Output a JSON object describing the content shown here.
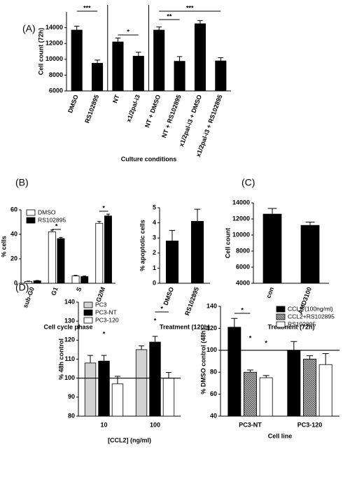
{
  "chart_data": [
    {
      "type": "bar",
      "panel": "(A)",
      "ylabel": "Cell count (72h)",
      "xlabel": "Culture conditions",
      "categories": [
        "DMSO",
        "RS102895",
        "NT",
        "x1/2pal-i3",
        "NT + DMSO",
        "NT + RS102895",
        "x1/2pal-i3 + DMSO",
        "x1/2pal-i3 + RS102895"
      ],
      "values": [
        13700,
        9500,
        12200,
        10400,
        13700,
        9750,
        14500,
        9800
      ],
      "errors": [
        500,
        400,
        500,
        500,
        400,
        600,
        400,
        400
      ],
      "color": "#000000",
      "ylim": [
        6000,
        16000
      ],
      "yticks": [
        6000,
        8000,
        10000,
        12000,
        14000
      ],
      "annotations": [
        "***",
        "*",
        "**",
        "***"
      ]
    },
    {
      "type": "bar",
      "panel": "(B)",
      "ylabel": "% cells",
      "xlabel": "Cell cycle phase",
      "categories": [
        "sub-G0",
        "G1",
        "S",
        "G2/M"
      ],
      "series": [
        {
          "name": "DMSO",
          "color": "#ffffff",
          "values": [
            1.5,
            42,
            6,
            49
          ],
          "errors": [
            0.3,
            1.5,
            0.5,
            1.5
          ]
        },
        {
          "name": "RS102895",
          "color": "#000000",
          "values": [
            2,
            36.5,
            5.5,
            55
          ],
          "errors": [
            0.3,
            1,
            0.4,
            1.5
          ]
        }
      ],
      "ylim": [
        0,
        60
      ],
      "yticks": [
        0,
        20,
        40,
        60
      ],
      "legend": "upper left",
      "annotations": [
        "*",
        "*"
      ]
    },
    {
      "type": "bar",
      "ylabel": "% apoptotic cells",
      "xlabel": "Treatment (120h)",
      "categories": [
        "DMSO",
        "RS102895"
      ],
      "values": [
        2.8,
        4.1
      ],
      "errors": [
        0.7,
        0.8
      ],
      "color": "#000000",
      "ylim": [
        0,
        5
      ],
      "yticks": [
        0,
        1,
        2,
        3,
        4,
        5
      ]
    },
    {
      "type": "bar",
      "panel": "(C)",
      "ylabel": "Cell count",
      "xlabel": "Treatment (72h)",
      "categories": [
        "con",
        "AMD3100"
      ],
      "values": [
        12600,
        11200
      ],
      "errors": [
        700,
        400
      ],
      "color": "#000000",
      "ylim": [
        4000,
        14000
      ],
      "yticks": [
        4000,
        6000,
        8000,
        10000,
        12000,
        14000
      ]
    },
    {
      "type": "bar",
      "panel": "(D)",
      "ylabel": "% 48h control",
      "xlabel": "[CCL2] (ng/ml)",
      "categories": [
        "10",
        "100"
      ],
      "series": [
        {
          "name": "PC3",
          "color": "#d3d3d3",
          "values": [
            108,
            115
          ],
          "errors": [
            4,
            2
          ]
        },
        {
          "name": "PC3-NT",
          "color": "#000000",
          "values": [
            109,
            119
          ],
          "errors": [
            3,
            3
          ]
        },
        {
          "name": "PC3-120",
          "color": "#ffffff",
          "values": [
            97,
            100
          ],
          "errors": [
            4,
            3
          ]
        }
      ],
      "ylim": [
        80,
        140
      ],
      "yticks": [
        80,
        90,
        100,
        110,
        120,
        130,
        140
      ],
      "refline": 100,
      "legend": "upper left",
      "annotations": [
        "*",
        "*",
        "*"
      ]
    },
    {
      "type": "bar",
      "ylabel": "% DMSO control (48h)",
      "xlabel": "Cell line",
      "categories": [
        "PC3-NT",
        "PC3-120"
      ],
      "series": [
        {
          "name": "CCL2 (100ng/ml)",
          "color": "#000000",
          "values": [
            121,
            100
          ],
          "errors": [
            8,
            8
          ]
        },
        {
          "name": "CCL2+RS102895",
          "color": "#9a9a9a",
          "values": [
            80,
            92
          ],
          "errors": [
            2,
            3
          ]
        },
        {
          "name": "RS102895",
          "color": "#ffffff",
          "values": [
            75,
            87
          ],
          "errors": [
            2,
            10
          ]
        }
      ],
      "ylim": [
        40,
        140
      ],
      "yticks": [
        40,
        60,
        80,
        100,
        120,
        140
      ],
      "refline": 100,
      "legend": "upper right",
      "annotations": [
        "*",
        "*",
        "*"
      ]
    }
  ]
}
